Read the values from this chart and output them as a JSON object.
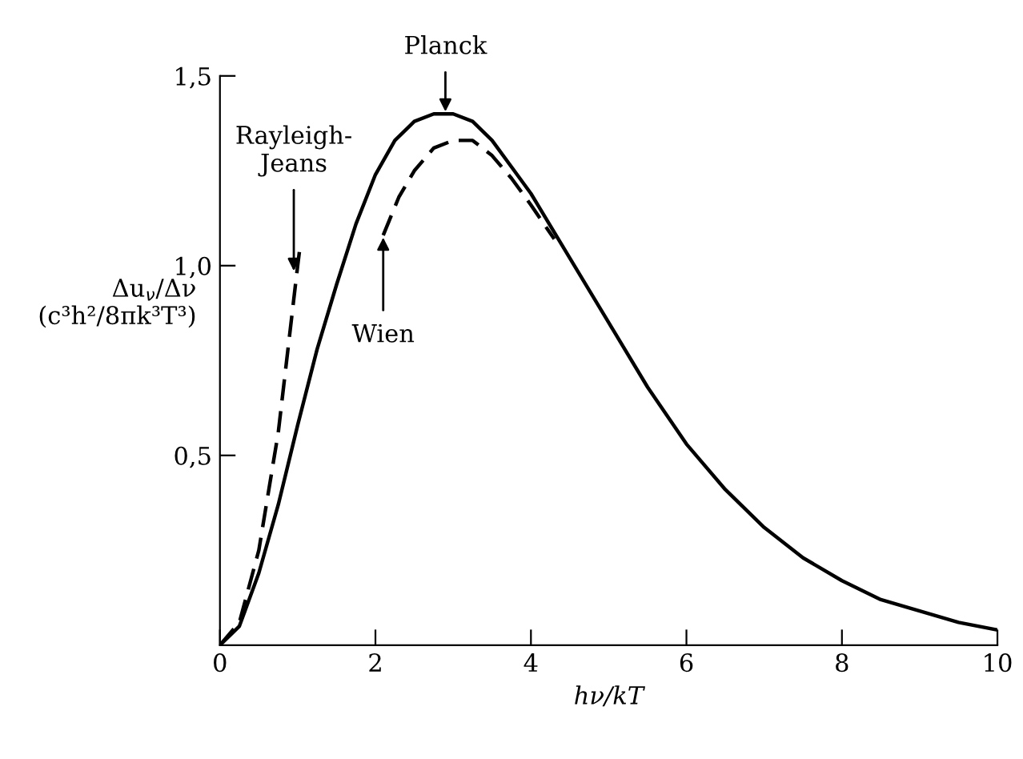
{
  "chart_data": {
    "type": "line",
    "xlabel": "hν/kT",
    "ylabel": "Δu$_{ν}$/Δν\n(c³h²/8πk³T³)",
    "xlim": [
      0,
      10
    ],
    "ylim": [
      0,
      1.5
    ],
    "xticks": [
      0,
      2,
      4,
      6,
      8,
      10
    ],
    "yticks": [
      {
        "value": 0.5,
        "label": "0,5"
      },
      {
        "value": 1.0,
        "label": "1,0"
      },
      {
        "value": 1.5,
        "label": "1,5"
      }
    ],
    "grid": false,
    "legend": false,
    "marker": "none",
    "series": [
      {
        "color": "#000000",
        "line_style": "solid",
        "x": [
          0,
          0.25,
          0.5,
          0.75,
          1.0,
          1.25,
          1.5,
          1.75,
          2.0,
          2.25,
          2.5,
          2.75,
          3.0,
          3.25,
          3.5,
          3.75,
          4.0,
          4.5,
          5.0,
          5.5,
          6.0,
          6.5,
          7.0,
          7.5,
          8.0,
          8.5,
          9.0,
          9.5,
          10.0
        ],
        "values": [
          0,
          0.05,
          0.19,
          0.37,
          0.58,
          0.78,
          0.95,
          1.11,
          1.24,
          1.33,
          1.38,
          1.4,
          1.4,
          1.38,
          1.33,
          1.26,
          1.19,
          1.02,
          0.85,
          0.68,
          0.53,
          0.41,
          0.31,
          0.23,
          0.17,
          0.12,
          0.09,
          0.06,
          0.04
        ]
      },
      {
        "color": "#000000",
        "line_style": "dashed",
        "x": [
          0,
          0.25,
          0.5,
          0.75,
          1.0,
          1.03
        ],
        "values": [
          0,
          0.06,
          0.25,
          0.56,
          1.0,
          1.05
        ]
      },
      {
        "color": "#000000",
        "line_style": "dashed",
        "x": [
          2.1,
          2.3,
          2.5,
          2.75,
          3.0,
          3.25,
          3.5,
          3.75,
          4.0,
          4.3
        ],
        "values": [
          1.08,
          1.18,
          1.25,
          1.31,
          1.33,
          1.33,
          1.29,
          1.23,
          1.16,
          1.07
        ]
      }
    ],
    "annotations": [
      {
        "text": "Planck",
        "x": 2.9,
        "y": 1.4
      },
      {
        "text": "Rayleigh-\nJeans",
        "x": 0.95,
        "y": 0.98
      },
      {
        "text": "Wien",
        "x": 2.1,
        "y": 1.08
      }
    ]
  }
}
